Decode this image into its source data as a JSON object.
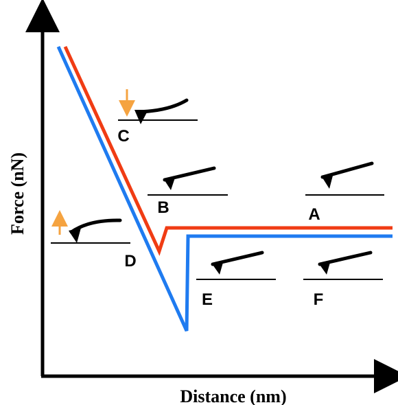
{
  "axes": {
    "y_label": "Force (nN)",
    "x_label": "Distance (nm)"
  },
  "labels": [
    "A",
    "B",
    "C",
    "D",
    "E",
    "F"
  ]
}
